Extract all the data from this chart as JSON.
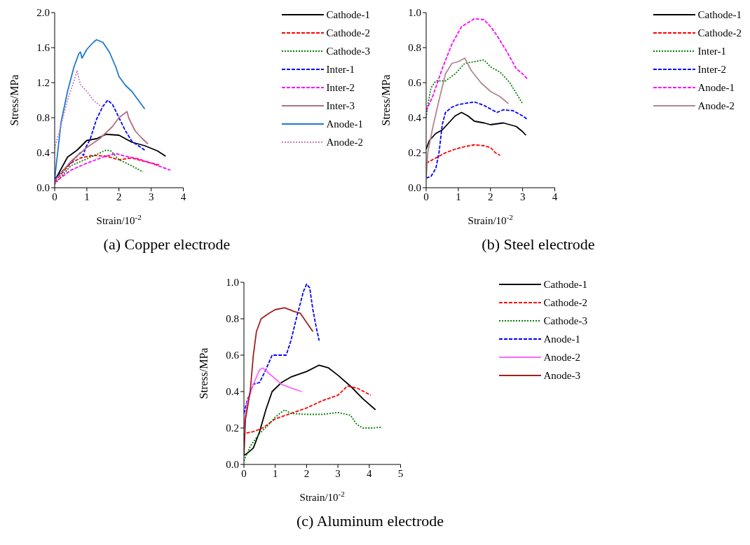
{
  "chart_data": [
    {
      "type": "line",
      "title": "(a) Copper electrode",
      "xlabel": "Strain/10$^{-2}$",
      "ylabel": "Stress/MPa",
      "xlim": [
        0,
        4
      ],
      "xticks": [
        0,
        1,
        2,
        3,
        4
      ],
      "ylim": [
        0,
        2
      ],
      "yticks": [
        {
          "value": 0,
          "label": "0.0"
        },
        0.4,
        0.8,
        1.2,
        1.6,
        {
          "value": 2,
          "label": "2.0"
        }
      ],
      "legend": "top right",
      "series": [
        {
          "name": "Cathode-1",
          "color": "#000000",
          "line_style": "solid",
          "x": [
            0,
            0.4,
            0.7,
            1.0,
            1.3,
            1.6,
            2.0,
            2.4,
            2.8,
            3.2,
            3.45
          ],
          "values": [
            0.08,
            0.35,
            0.43,
            0.54,
            0.56,
            0.61,
            0.6,
            0.52,
            0.48,
            0.42,
            0.36
          ]
        },
        {
          "name": "Cathode-2",
          "color": "#ff0000",
          "line_style": "dashed",
          "x": [
            0,
            0.5,
            0.8,
            1.2,
            1.6,
            2.0,
            2.4,
            2.8,
            3.25
          ],
          "values": [
            0.07,
            0.28,
            0.34,
            0.37,
            0.36,
            0.32,
            0.34,
            0.3,
            0.26
          ]
        },
        {
          "name": "Cathode-3",
          "color": "#008000",
          "line_style": "dotted",
          "x": [
            0,
            0.5,
            1.0,
            1.3,
            1.6,
            1.75,
            2.0,
            2.4,
            2.75
          ],
          "values": [
            0.04,
            0.25,
            0.33,
            0.38,
            0.43,
            0.42,
            0.32,
            0.25,
            0.18
          ]
        },
        {
          "name": "Inter-1",
          "color": "#0000ff",
          "line_style": "dashed",
          "x": [
            0,
            0.4,
            0.8,
            0.9,
            0.95,
            1.1,
            1.3,
            1.5,
            1.65,
            1.8,
            2.0,
            2.2,
            2.4,
            2.6,
            2.8
          ],
          "values": [
            0.1,
            0.25,
            0.4,
            0.37,
            0.45,
            0.55,
            0.78,
            0.93,
            1.0,
            0.95,
            0.8,
            0.65,
            0.53,
            0.48,
            0.43
          ]
        },
        {
          "name": "Inter-2",
          "color": "#ff00ff",
          "line_style": "dashed",
          "x": [
            0,
            0.5,
            1.0,
            1.5,
            1.9,
            2.2,
            2.6,
            3.0,
            3.3,
            3.6
          ],
          "values": [
            0.06,
            0.2,
            0.28,
            0.35,
            0.39,
            0.36,
            0.33,
            0.28,
            0.24,
            0.2
          ]
        },
        {
          "name": "Inter-3",
          "color": "#b07080",
          "line_style": "solid",
          "x": [
            0,
            0.5,
            1.0,
            1.4,
            1.8,
            2.0,
            2.25,
            2.3,
            2.5,
            2.7,
            2.9
          ],
          "values": [
            0.08,
            0.3,
            0.46,
            0.56,
            0.7,
            0.8,
            0.87,
            0.8,
            0.65,
            0.57,
            0.5
          ]
        },
        {
          "name": "Anode-1",
          "color": "#1e78d0",
          "line_style": "solid",
          "x": [
            0,
            0.2,
            0.4,
            0.6,
            0.75,
            0.8,
            0.85,
            1.0,
            1.2,
            1.3,
            1.5,
            1.7,
            1.9,
            2.0,
            2.2,
            2.4,
            2.6,
            2.8
          ],
          "values": [
            0.1,
            0.75,
            1.1,
            1.38,
            1.53,
            1.55,
            1.48,
            1.58,
            1.66,
            1.69,
            1.66,
            1.55,
            1.38,
            1.27,
            1.17,
            1.1,
            1.0,
            0.9
          ]
        },
        {
          "name": "Anode-2",
          "color": "#c080c0",
          "line_style": "dotted",
          "x": [
            0,
            0.2,
            0.4,
            0.6,
            0.7,
            0.75,
            0.8,
            1.0,
            1.2,
            1.4,
            1.5
          ],
          "values": [
            0.45,
            0.72,
            1.0,
            1.22,
            1.34,
            1.25,
            1.18,
            1.1,
            1.0,
            0.94,
            0.93
          ]
        }
      ]
    },
    {
      "type": "line",
      "title": "(b) Steel electrode",
      "xlabel": "Strain/10$^{-2}$",
      "ylabel": "Stress/MPa",
      "xlim": [
        0,
        4
      ],
      "xticks": [
        0,
        1,
        2,
        3,
        4
      ],
      "ylim": [
        0,
        1
      ],
      "yticks": [
        {
          "value": 0,
          "label": "0.0"
        },
        0.2,
        0.4,
        0.6,
        0.8,
        {
          "value": 1,
          "label": "1.0"
        }
      ],
      "legend": "top right",
      "series": [
        {
          "name": "Cathode-1",
          "color": "#000000",
          "line_style": "solid",
          "x": [
            0,
            0.1,
            0.3,
            0.5,
            0.7,
            0.9,
            1.1,
            1.3,
            1.5,
            1.8,
            2.0,
            2.4,
            2.6,
            2.8,
            3.0,
            3.1
          ],
          "values": [
            0.22,
            0.27,
            0.31,
            0.33,
            0.37,
            0.41,
            0.43,
            0.41,
            0.38,
            0.37,
            0.36,
            0.37,
            0.36,
            0.35,
            0.32,
            0.3
          ]
        },
        {
          "name": "Cathode-2",
          "color": "#ff0000",
          "line_style": "dashed",
          "x": [
            0,
            0.3,
            0.6,
            0.9,
            1.2,
            1.5,
            1.8,
            2.0,
            2.15,
            2.3
          ],
          "values": [
            0.14,
            0.17,
            0.2,
            0.22,
            0.235,
            0.245,
            0.24,
            0.23,
            0.2,
            0.185
          ]
        },
        {
          "name": "Inter-1",
          "color": "#008000",
          "line_style": "dotted",
          "x": [
            0,
            0.05,
            0.15,
            0.3,
            0.6,
            0.9,
            1.2,
            1.5,
            1.8,
            2.0,
            2.3,
            2.6,
            2.8,
            3.0
          ],
          "values": [
            0.4,
            0.47,
            0.57,
            0.61,
            0.61,
            0.65,
            0.71,
            0.72,
            0.73,
            0.69,
            0.66,
            0.6,
            0.54,
            0.48
          ]
        },
        {
          "name": "Inter-2",
          "color": "#0000ff",
          "line_style": "dashed",
          "x": [
            0,
            0.15,
            0.3,
            0.4,
            0.5,
            0.6,
            0.8,
            1.0,
            1.5,
            1.8,
            2.0,
            2.2,
            2.4,
            2.7,
            3.0,
            3.15
          ],
          "values": [
            0.055,
            0.065,
            0.11,
            0.2,
            0.36,
            0.43,
            0.46,
            0.475,
            0.49,
            0.47,
            0.45,
            0.43,
            0.445,
            0.44,
            0.41,
            0.39
          ]
        },
        {
          "name": "Anode-1",
          "color": "#ff00ff",
          "line_style": "dashed",
          "x": [
            0,
            0.2,
            0.5,
            0.8,
            1.1,
            1.5,
            1.8,
            2.0,
            2.2,
            2.5,
            2.8,
            3.0,
            3.15
          ],
          "values": [
            0.44,
            0.52,
            0.68,
            0.82,
            0.92,
            0.965,
            0.96,
            0.92,
            0.87,
            0.78,
            0.68,
            0.65,
            0.62
          ]
        },
        {
          "name": "Anode-2",
          "color": "#b08890",
          "line_style": "solid",
          "x": [
            0,
            0.05,
            0.2,
            0.4,
            0.6,
            0.8,
            1.0,
            1.2,
            1.4,
            1.7,
            2.0,
            2.3,
            2.56
          ],
          "values": [
            0.05,
            0.2,
            0.34,
            0.5,
            0.65,
            0.71,
            0.72,
            0.74,
            0.67,
            0.6,
            0.55,
            0.52,
            0.48
          ]
        }
      ]
    },
    {
      "type": "line",
      "title": "(c) Aluminum electrode",
      "xlabel": "Strain/10$^{-2}$",
      "ylabel": "Stress/MPa",
      "xlim": [
        0,
        5
      ],
      "xticks": [
        0,
        1,
        2,
        3,
        4,
        5
      ],
      "ylim": [
        0,
        1
      ],
      "yticks": [
        {
          "value": 0,
          "label": "0.0"
        },
        0.2,
        0.4,
        0.6,
        0.8,
        {
          "value": 1,
          "label": "1.0"
        }
      ],
      "legend": "top right",
      "series": [
        {
          "name": "Cathode-1",
          "color": "#000000",
          "line_style": "solid",
          "x": [
            0,
            0.1,
            0.3,
            0.5,
            0.7,
            0.9,
            1.2,
            1.5,
            2.0,
            2.4,
            2.7,
            3.0,
            3.4,
            3.8,
            4.2
          ],
          "values": [
            0.05,
            0.06,
            0.09,
            0.18,
            0.3,
            0.4,
            0.45,
            0.48,
            0.51,
            0.545,
            0.53,
            0.49,
            0.43,
            0.36,
            0.3
          ]
        },
        {
          "name": "Cathode-2",
          "color": "#ff0000",
          "line_style": "dashed",
          "x": [
            0,
            0.02,
            0.3,
            0.6,
            1.0,
            1.5,
            2.0,
            2.5,
            3.0,
            3.3,
            3.6,
            4.05
          ],
          "values": [
            0.1,
            0.17,
            0.18,
            0.2,
            0.25,
            0.28,
            0.31,
            0.35,
            0.38,
            0.43,
            0.42,
            0.38
          ]
        },
        {
          "name": "Cathode-3",
          "color": "#008000",
          "line_style": "dotted",
          "x": [
            0,
            0.2,
            0.5,
            0.8,
            1.0,
            1.3,
            1.5,
            2.0,
            2.5,
            3.0,
            3.4,
            3.6,
            3.8,
            4.1,
            4.4
          ],
          "values": [
            0.02,
            0.1,
            0.17,
            0.22,
            0.26,
            0.3,
            0.28,
            0.275,
            0.275,
            0.285,
            0.27,
            0.22,
            0.2,
            0.2,
            0.205
          ]
        },
        {
          "name": "Anode-1",
          "color": "#0000ff",
          "line_style": "dashed",
          "x": [
            0,
            0.1,
            0.3,
            0.5,
            0.7,
            0.9,
            1.2,
            1.35,
            1.5,
            1.7,
            1.9,
            2.0,
            2.1,
            2.2,
            2.3,
            2.4
          ],
          "values": [
            0.28,
            0.35,
            0.44,
            0.45,
            0.52,
            0.6,
            0.6,
            0.6,
            0.68,
            0.82,
            0.95,
            0.99,
            0.97,
            0.85,
            0.76,
            0.68
          ]
        },
        {
          "name": "Anode-2",
          "color": "#ff66ff",
          "line_style": "solid",
          "x": [
            0,
            0.1,
            0.3,
            0.5,
            0.6,
            0.8,
            1.0,
            1.2,
            1.5,
            1.85
          ],
          "values": [
            0.2,
            0.34,
            0.44,
            0.52,
            0.53,
            0.5,
            0.47,
            0.44,
            0.42,
            0.4
          ]
        },
        {
          "name": "Anode-3",
          "color": "#a02020",
          "line_style": "solid",
          "x": [
            0,
            0.05,
            0.2,
            0.3,
            0.4,
            0.55,
            0.8,
            1.0,
            1.3,
            1.6,
            1.8,
            2.0,
            2.2
          ],
          "values": [
            0.05,
            0.25,
            0.4,
            0.6,
            0.73,
            0.8,
            0.83,
            0.85,
            0.86,
            0.84,
            0.83,
            0.78,
            0.73
          ]
        }
      ]
    }
  ]
}
